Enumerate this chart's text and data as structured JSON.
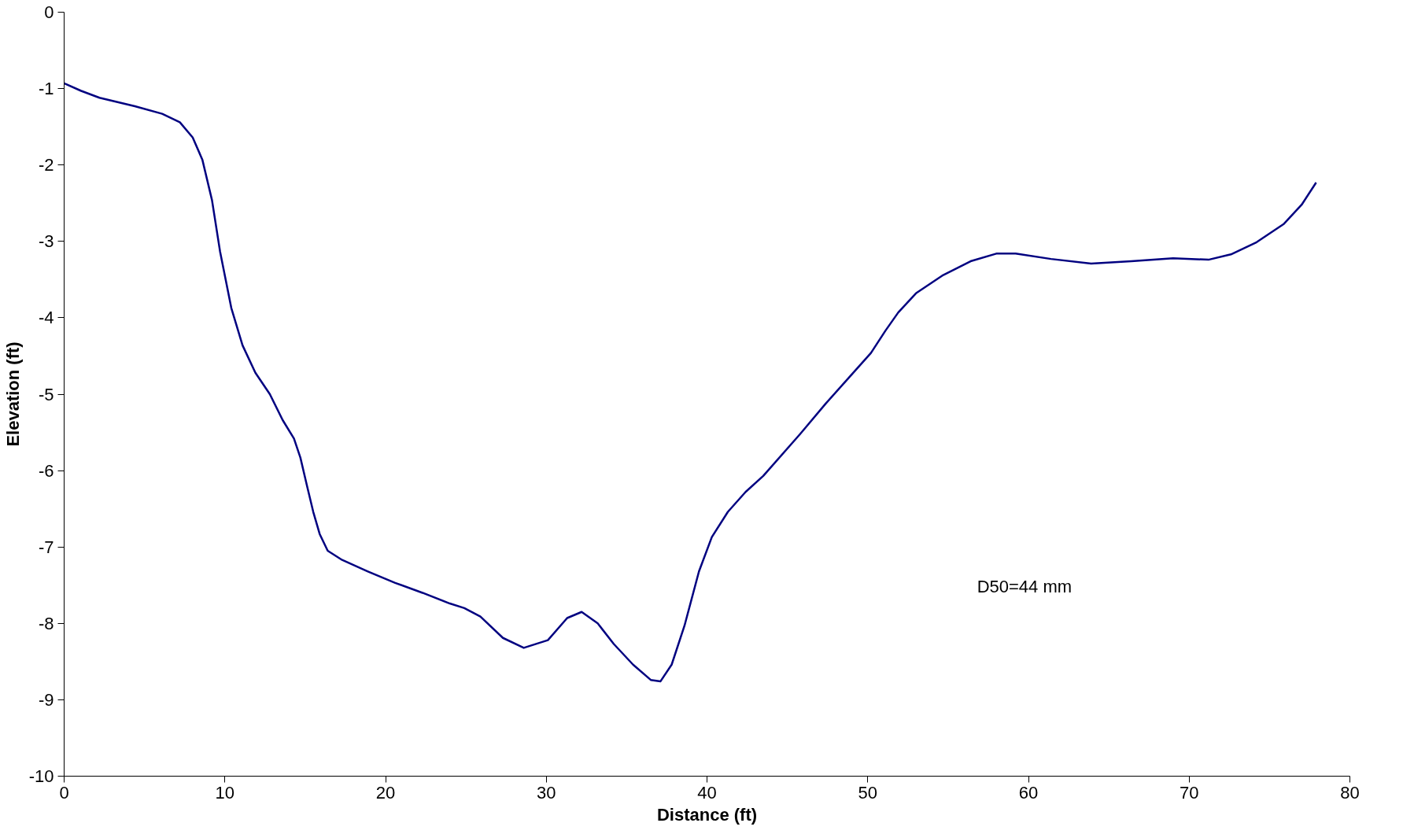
{
  "chart_data": {
    "type": "line",
    "xlabel": "Distance (ft)",
    "ylabel": "Elevation (ft)",
    "x": [
      0,
      1.06,
      2.2,
      4.4,
      6.1,
      7.2,
      8.0,
      8.6,
      9.2,
      9.7,
      10.4,
      11.1,
      11.9,
      12.8,
      13.6,
      14.3,
      14.7,
      15.1,
      15.5,
      15.9,
      16.4,
      17.3,
      18.9,
      20.6,
      22.3,
      24,
      24.9,
      25.9,
      27.3,
      28.6,
      30.1,
      31.3,
      32.2,
      33.2,
      34.2,
      35.4,
      36.5,
      37.1,
      37.8,
      38.6,
      39.5,
      40.3,
      41.3,
      42.4,
      43.5,
      45.8,
      47.4,
      48.8,
      50.2,
      51.1,
      51.9,
      53,
      54.7,
      56.4,
      58,
      59.2,
      61.4,
      63.9,
      66.4,
      69,
      71.2,
      72.6,
      74.2,
      75.9,
      77,
      77.9
    ],
    "series": [
      {
        "color": "#000080",
        "values": [
          -0.93,
          -1.03,
          -1.12,
          -1.23,
          -1.33,
          -1.44,
          -1.64,
          -1.93,
          -2.46,
          -3.13,
          -3.87,
          -4.36,
          -4.72,
          -5.0,
          -5.34,
          -5.58,
          -5.83,
          -6.19,
          -6.54,
          -6.83,
          -7.05,
          -7.17,
          -7.32,
          -7.47,
          -7.6,
          -7.74,
          -7.8,
          -7.91,
          -8.19,
          -8.32,
          -8.22,
          -7.93,
          -7.85,
          -8.0,
          -8.27,
          -8.54,
          -8.74,
          -8.76,
          -8.54,
          -8.03,
          -7.32,
          -6.87,
          -6.54,
          -6.28,
          -6.07,
          -5.52,
          -5.12,
          -4.79,
          -4.46,
          -4.17,
          -3.93,
          -3.68,
          -3.44,
          -3.26,
          -3.16,
          -3.16,
          -3.23,
          -3.29,
          -3.26,
          -3.22,
          -3.24,
          -3.17,
          -3.01,
          -2.77,
          -2.52,
          -2.23
        ]
      }
    ],
    "xlim": [
      0,
      80
    ],
    "xticks": [
      0,
      10,
      20,
      30,
      40,
      50,
      60,
      70,
      80
    ],
    "ylim": [
      -10,
      0
    ],
    "yticks": [
      0,
      -1,
      -2,
      -3,
      -4,
      -5,
      -6,
      -7,
      -8,
      -9,
      -10
    ],
    "annotations": [
      "D50=44 mm"
    ],
    "grid": false,
    "marker": "none",
    "line_style": "solid"
  }
}
